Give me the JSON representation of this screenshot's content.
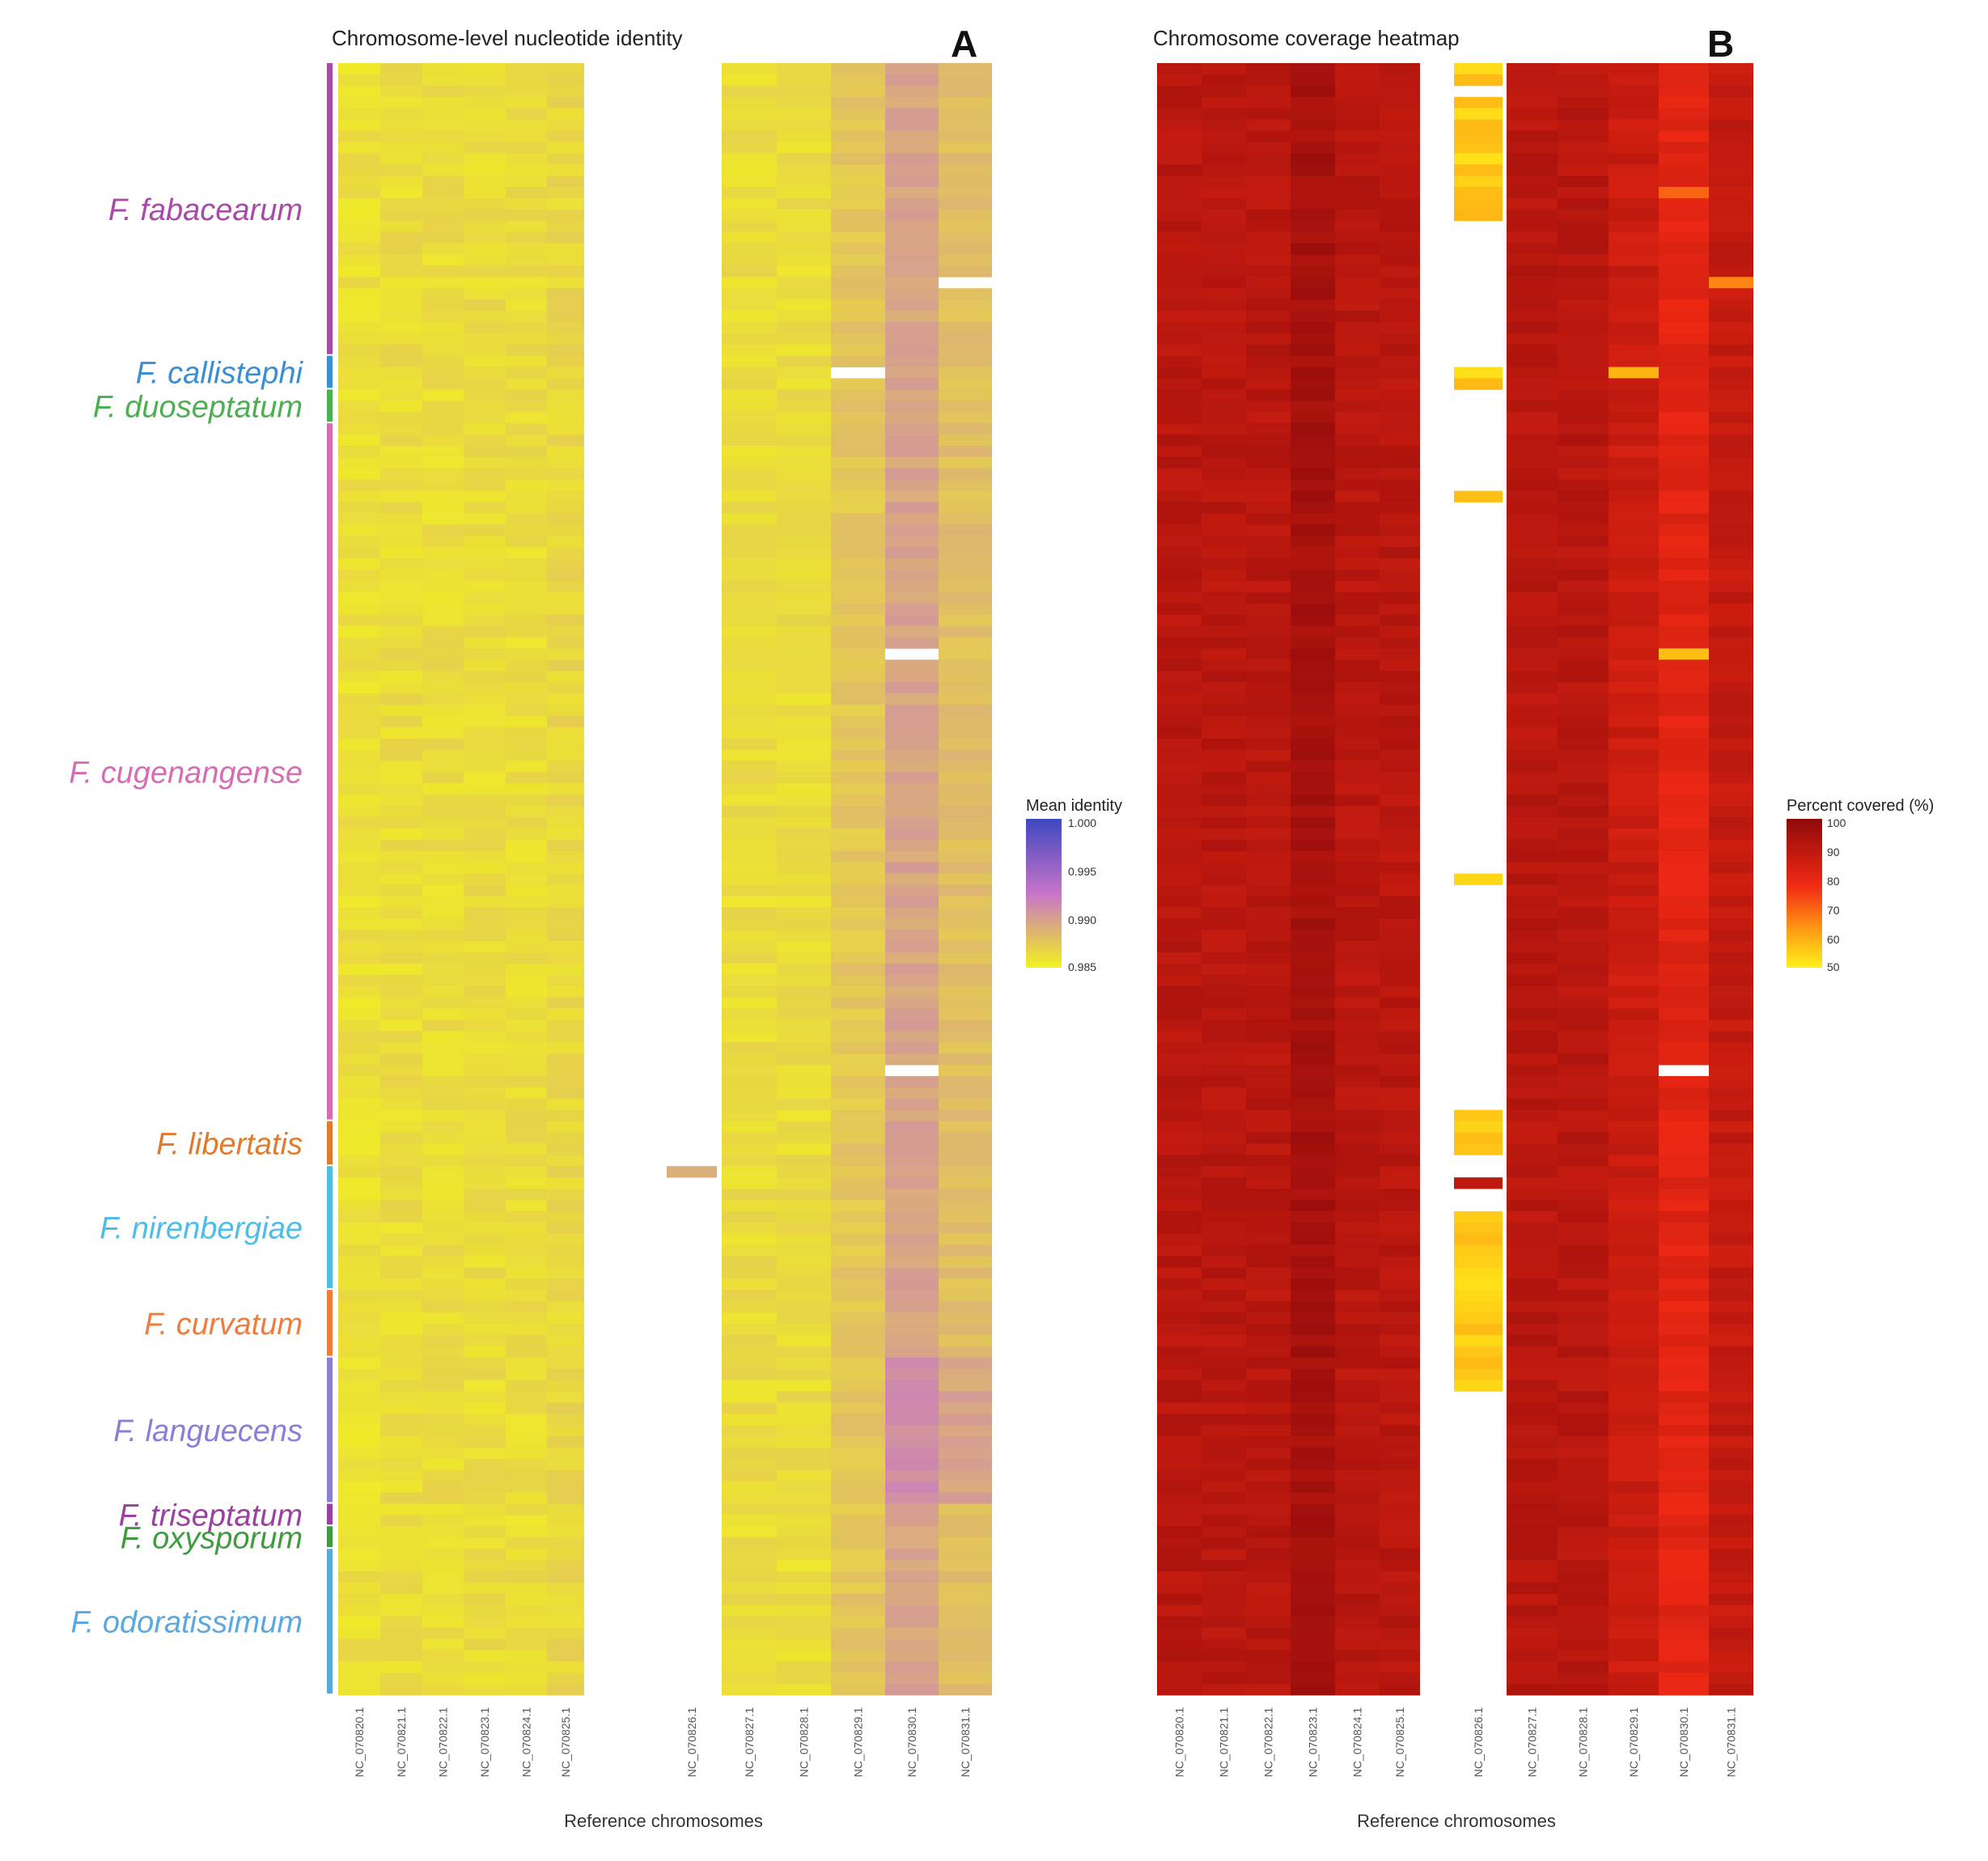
{
  "chart_data": [
    {
      "panel": "A",
      "type": "heatmap",
      "title": "Chromosome-level nucleotide identity",
      "xlabel": "Reference chromosomes",
      "ylabel": "",
      "x_ticks": [
        "NC_070820.1",
        "NC_070821.1",
        "NC_070822.1",
        "NC_070823.1",
        "NC_070824.1",
        "NC_070825.1",
        "NC_070826.1",
        "NC_070827.1",
        "NC_070828.1",
        "NC_070829.1",
        "NC_070830.1",
        "NC_070831.1"
      ],
      "legend": {
        "title": "Mean identity",
        "ticks": [
          "1.000",
          "0.995",
          "0.990",
          "0.985"
        ],
        "range": [
          0.985,
          1.0
        ],
        "colors": [
          "#f2f21e",
          "#c774c9",
          "#3f47c0"
        ]
      },
      "missing_column": "NC_070826.1",
      "typical_values": {
        "NC_070820.1": 0.9995,
        "NC_070825.1": 0.999,
        "NC_070829.1": 0.998,
        "NC_070830.1": 0.996,
        "NC_070831.1": 0.9975
      },
      "missing_cells": [
        {
          "column": "NC_070831.1",
          "group": "F. fabacearum"
        },
        {
          "column": "NC_070829.1",
          "group": "F. callistephi"
        },
        {
          "column": "NC_070830.1",
          "group": "F. cugenangense"
        },
        {
          "column": "NC_070830.1",
          "group": "F. cugenangense"
        }
      ]
    },
    {
      "panel": "B",
      "type": "heatmap",
      "title": "Chromosome coverage heatmap",
      "xlabel": "Reference chromosomes",
      "ylabel": "",
      "x_ticks": [
        "NC_070820.1",
        "NC_070821.1",
        "NC_070822.1",
        "NC_070823.1",
        "NC_070824.1",
        "NC_070825.1",
        "NC_070826.1",
        "NC_070827.1",
        "NC_070828.1",
        "NC_070829.1",
        "NC_070830.1",
        "NC_070831.1"
      ],
      "legend": {
        "title": "Percent covered (%)",
        "ticks": [
          "100",
          "90",
          "80",
          "70",
          "60",
          "50"
        ],
        "range": [
          50,
          100
        ],
        "colors": [
          "#ffef1a",
          "#ff9d14",
          "#f12a14",
          "#8e0a0a"
        ]
      },
      "typical_values": {
        "NC_070820.1": 95,
        "NC_070823.1": 98,
        "NC_070826.1": 55,
        "NC_070829.1": 92,
        "NC_070830.1": 88,
        "NC_070831.1": 93
      },
      "missing_cells": [
        {
          "column": "NC_070830.1",
          "group": "F. cugenangense"
        }
      ]
    }
  ],
  "groups": [
    {
      "name": "F. fabacearum",
      "color": "#a84aa8",
      "rows": 26
    },
    {
      "name": "F. callistephi",
      "color": "#3a8fd4",
      "rows": 3
    },
    {
      "name": "F. duoseptatum",
      "color": "#4caf50",
      "rows": 3
    },
    {
      "name": "F. cugenangense",
      "color": "#d86cb4",
      "rows": 62
    },
    {
      "name": "F. libertatis",
      "color": "#e07a2e",
      "rows": 4
    },
    {
      "name": "F. nirenbergiae",
      "color": "#4dbde8",
      "rows": 11
    },
    {
      "name": "F. curvatum",
      "color": "#f07c3a",
      "rows": 6
    },
    {
      "name": "F. languecens",
      "color": "#8a7fd8",
      "rows": 13
    },
    {
      "name": "F. triseptatum",
      "color": "#9b3fa0",
      "rows": 2
    },
    {
      "name": "F. oxysporum",
      "color": "#3e9b3e",
      "rows": 2
    },
    {
      "name": "F. odoratissimum",
      "color": "#5aa8e0",
      "rows": 13
    }
  ]
}
